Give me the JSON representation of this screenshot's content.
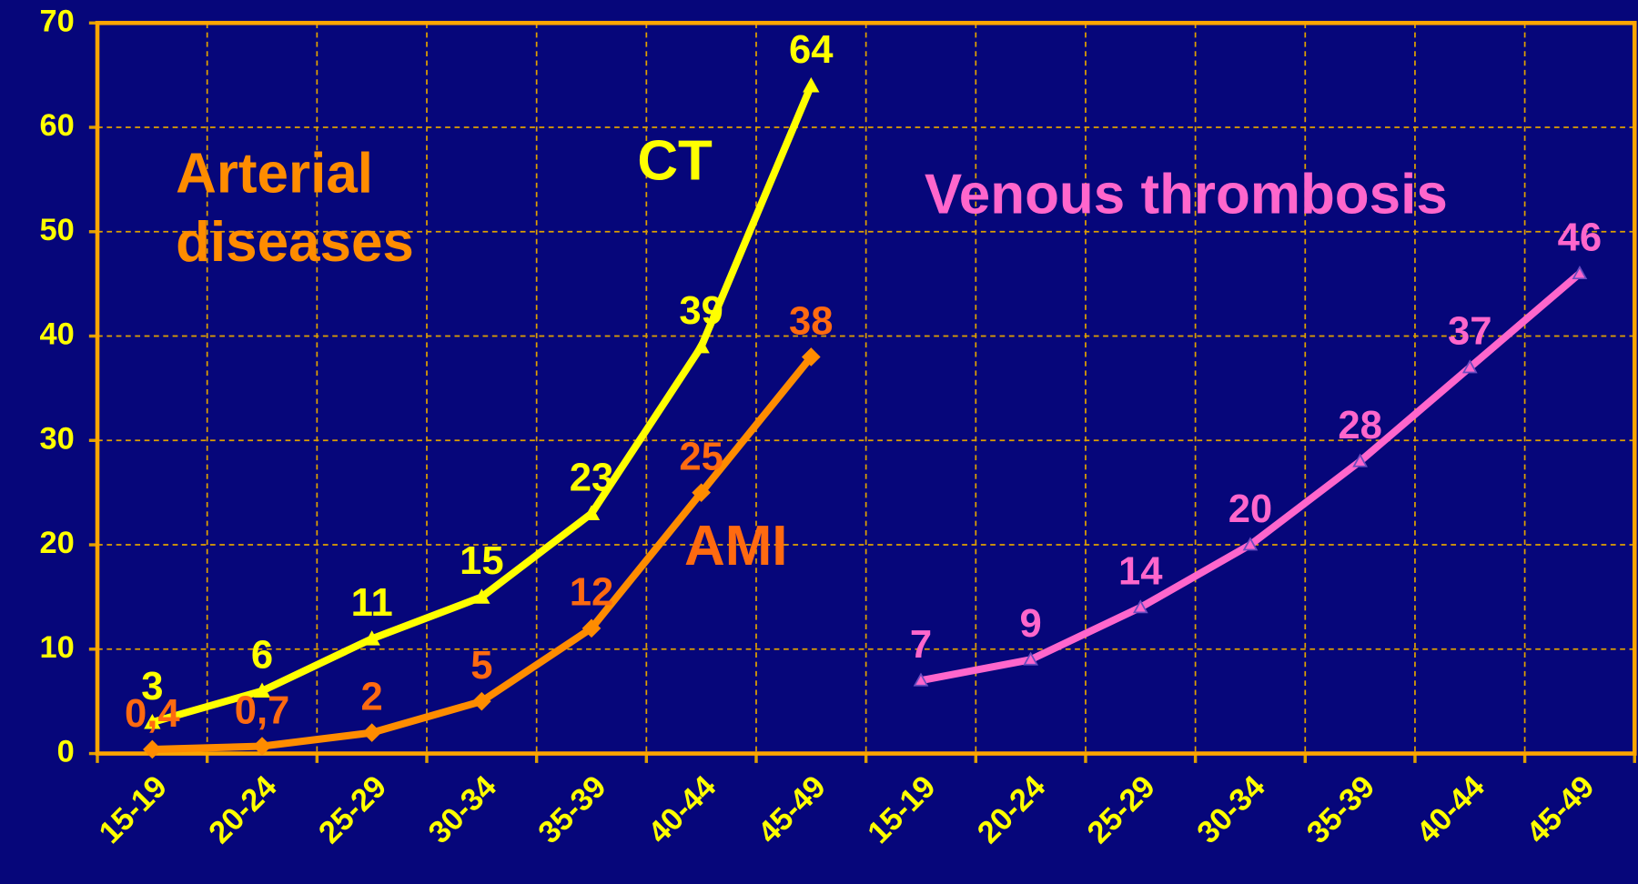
{
  "chart_data": {
    "type": "line",
    "categories": [
      "15-19",
      "20-24",
      "25-29",
      "30-34",
      "35-39",
      "40-44",
      "45-49",
      "15-19",
      "20-24",
      "25-29",
      "30-34",
      "35-39",
      "40-44",
      "45-49"
    ],
    "series": [
      {
        "name": "CT",
        "color": "#ffff00",
        "marker": "triangle",
        "values": [
          3,
          6,
          11,
          15,
          23,
          39,
          64,
          null,
          null,
          null,
          null,
          null,
          null,
          null
        ]
      },
      {
        "name": "AMI",
        "color": "#ff8c00",
        "label_color": "#ff6a10",
        "marker": "diamond",
        "values": [
          0.4,
          0.7,
          2,
          5,
          12,
          25,
          38,
          null,
          null,
          null,
          null,
          null,
          null,
          null
        ],
        "value_labels": [
          "0,4",
          "0,7",
          null,
          null,
          null,
          null,
          null,
          null,
          null,
          null,
          null,
          null,
          null,
          null
        ]
      },
      {
        "name": "Venous thrombosis",
        "color": "#ff66cc",
        "marker": "small-triangle",
        "values": [
          null,
          null,
          null,
          null,
          null,
          null,
          null,
          7,
          9,
          14,
          20,
          28,
          37,
          46
        ]
      }
    ],
    "annotations": [
      {
        "text": [
          "Arterial",
          "diseases"
        ],
        "color": "#ff8c00"
      }
    ],
    "ylim": [
      0,
      70
    ],
    "yticks": [
      0,
      10,
      20,
      30,
      40,
      50,
      60,
      70
    ],
    "grid": true
  }
}
